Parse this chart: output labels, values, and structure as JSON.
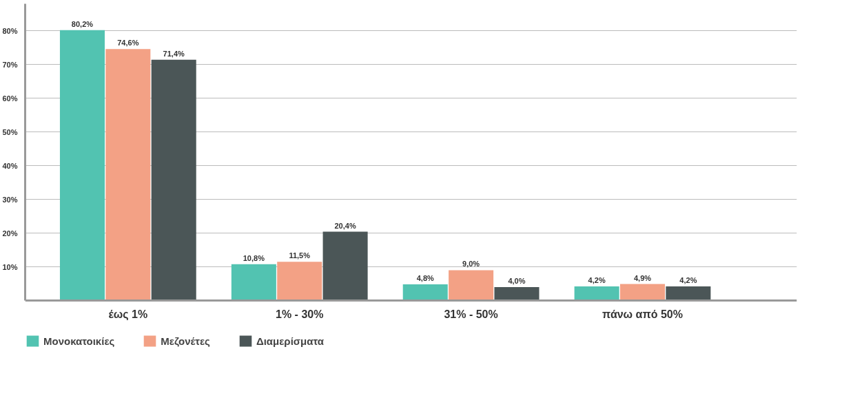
{
  "chart_data": {
    "type": "bar",
    "categories": [
      "έως 1%",
      "1% - 30%",
      "31% - 50%",
      "πάνω από 50%"
    ],
    "series": [
      {
        "name": "Μονοκατοικίες",
        "color": "#52c3b1",
        "values": [
          80.2,
          10.8,
          4.8,
          4.2
        ],
        "value_labels": [
          "80,2%",
          "10,8%",
          "4,8%",
          "4,2%"
        ]
      },
      {
        "name": "Μεζονέτες",
        "color": "#f3a185",
        "values": [
          74.6,
          11.5,
          9.0,
          4.9
        ],
        "value_labels": [
          "74,6%",
          "11,5%",
          "9,0%",
          "4,9%"
        ]
      },
      {
        "name": "Διαμερίσματα",
        "color": "#4b5657",
        "values": [
          71.4,
          20.4,
          4.0,
          4.2
        ],
        "value_labels": [
          "71,4%",
          "20,4%",
          "4,0%",
          "4,2%"
        ]
      }
    ],
    "ylim": [
      0,
      88
    ],
    "yticks": [
      {
        "value": 10,
        "label": "10%"
      },
      {
        "value": 20,
        "label": "20%"
      },
      {
        "value": 30,
        "label": "30%"
      },
      {
        "value": 40,
        "label": "40%"
      },
      {
        "value": 50,
        "label": "50%"
      },
      {
        "value": 60,
        "label": "60%"
      },
      {
        "value": 70,
        "label": "70%"
      },
      {
        "value": 80,
        "label": "80%"
      }
    ],
    "grid": "y",
    "legend": "bottom left"
  }
}
